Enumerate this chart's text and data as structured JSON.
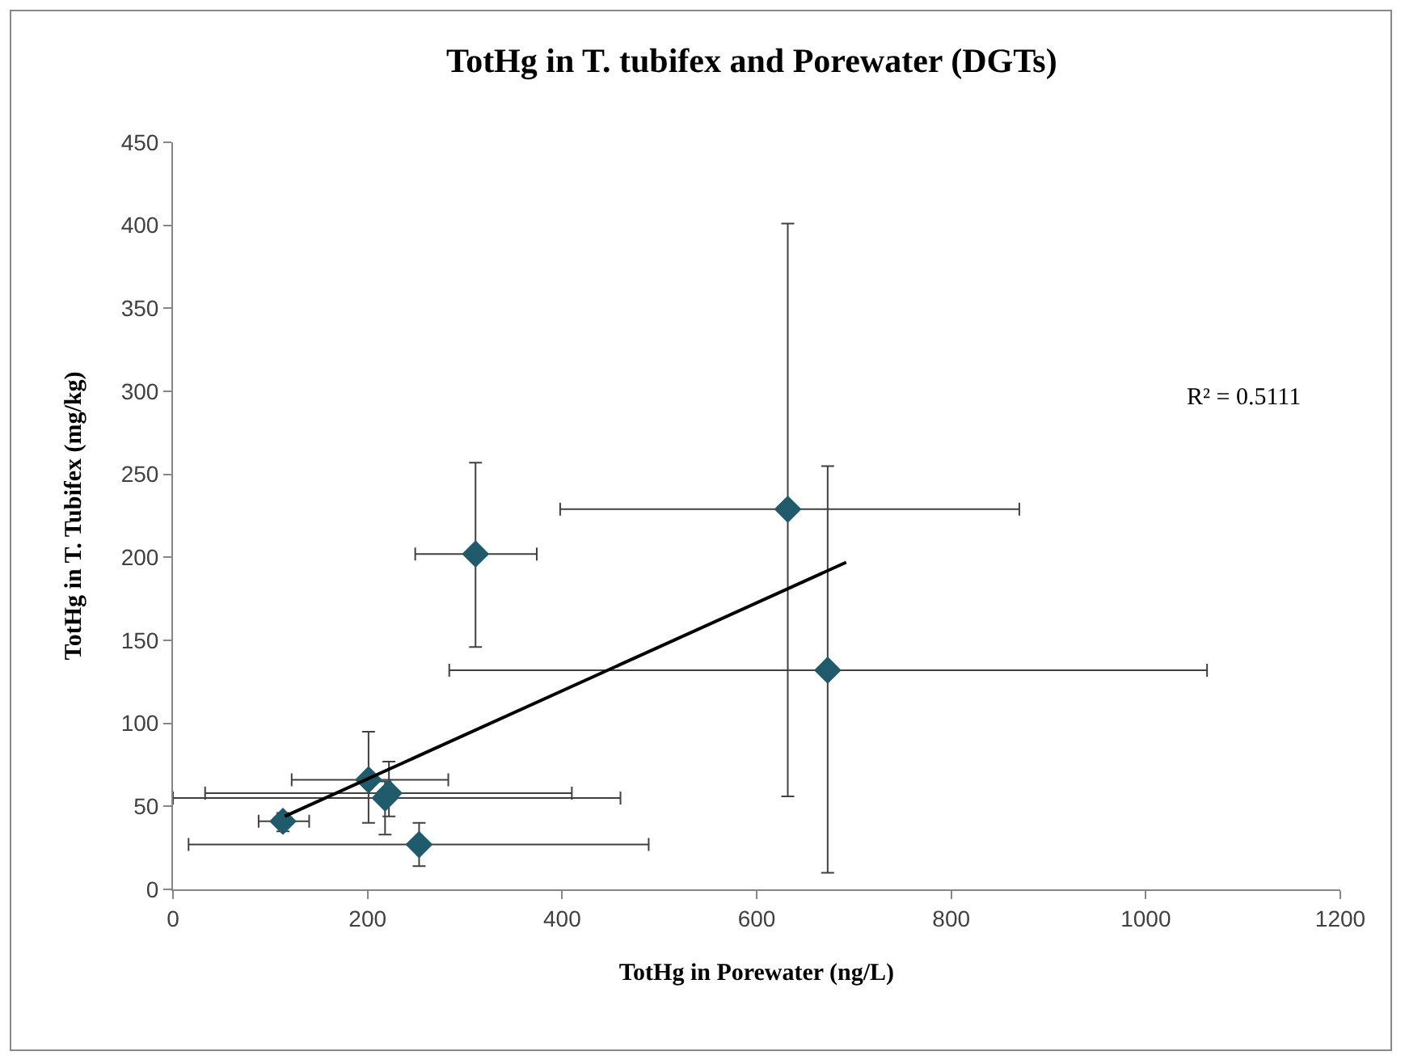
{
  "chart_data": {
    "type": "scatter",
    "title": "TotHg in T. tubifex and Porewater (DGTs)",
    "xlabel": "TotHg in Porewater (ng/L)",
    "ylabel": "TotHg in T. Tubifex (mg/kg)",
    "annotations": [
      "R² = 0.5111"
    ],
    "xlim": [
      0,
      1200
    ],
    "xticks": [
      0,
      200,
      400,
      600,
      800,
      1000,
      1200
    ],
    "ylim": [
      0,
      450
    ],
    "yticks": [
      0,
      50,
      100,
      150,
      200,
      250,
      300,
      350,
      400,
      450
    ],
    "grid": false,
    "series": [
      {
        "type": "scatter",
        "color": "#1f5b6b",
        "marker": "diamond",
        "x": [
          113,
          201,
          222,
          218,
          253,
          311,
          632,
          673
        ],
        "values": [
          41,
          66,
          58,
          55,
          27,
          202,
          229,
          132
        ],
        "errors": [
          [
            35,
            46
          ],
          [
            40,
            95
          ],
          [
            44,
            77
          ],
          [
            33,
            65
          ],
          [
            14,
            40
          ],
          [
            146,
            257
          ],
          [
            56,
            401
          ],
          [
            10,
            255
          ]
        ],
        "xerrors": [
          [
            88,
            140
          ],
          [
            122,
            283
          ],
          [
            33,
            410
          ],
          [
            0,
            460
          ],
          [
            16,
            489
          ],
          [
            249,
            374
          ],
          [
            398,
            870
          ],
          [
            284,
            1063
          ]
        ]
      },
      {
        "type": "line",
        "color": "#000000",
        "marker": "none",
        "line_style": "solid",
        "x": [
          115,
          692
        ],
        "values": [
          44,
          197
        ]
      }
    ]
  }
}
